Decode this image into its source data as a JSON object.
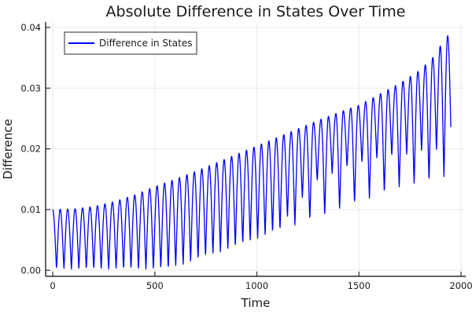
{
  "chart_data": {
    "type": "line",
    "title": "Absolute Difference in States Over Time",
    "xlabel": "Time",
    "ylabel": "Difference",
    "legend": {
      "label": "Difference in States",
      "position": "top-left"
    },
    "background_color": "#ffffff",
    "line_color": "#0000ff",
    "grid": true,
    "grid_color": "#e9e9e9",
    "spine_color": "#2f2f2f",
    "xlim": [
      -35,
      2023
    ],
    "ylim": [
      -0.001,
      0.0409
    ],
    "xticks": [
      0,
      500,
      1000,
      1500,
      2000
    ],
    "xtick_labels": [
      "0",
      "500",
      "1000",
      "1500",
      "2000"
    ],
    "yticks": [
      0,
      0.01,
      0.02,
      0.03,
      0.04
    ],
    "ytick_labels": [
      "0.00",
      "0.01",
      "0.02",
      "0.03",
      "0.04"
    ],
    "series": {
      "name": "Difference in States",
      "t_start": 0,
      "t_end": 1950,
      "sample_step": 1.25,
      "tooth_period": 36.5,
      "sharpness": 1.15,
      "description": "Rectified oscillation |state1 - state2|: teeth every ~36.5 time units; upper envelope grows from 0.010 at t=0 to 0.039 at t=1950; lower envelope stays near 0 until t=560 then rises to ~0.016; after t=1100 minima alternate between a deep and a shallow branch (band bottom ~0.020).",
      "envelope_top": [
        [
          0,
          0.01
        ],
        [
          100,
          0.0101
        ],
        [
          200,
          0.0105
        ],
        [
          300,
          0.0113
        ],
        [
          400,
          0.0124
        ],
        [
          500,
          0.0138
        ],
        [
          600,
          0.015
        ],
        [
          700,
          0.0163
        ],
        [
          800,
          0.0177
        ],
        [
          900,
          0.0191
        ],
        [
          1000,
          0.0205
        ],
        [
          1100,
          0.0219
        ],
        [
          1200,
          0.0233
        ],
        [
          1300,
          0.0247
        ],
        [
          1400,
          0.026
        ],
        [
          1500,
          0.0272
        ],
        [
          1600,
          0.029
        ],
        [
          1700,
          0.0308
        ],
        [
          1800,
          0.033
        ],
        [
          1875,
          0.0355
        ],
        [
          1920,
          0.0383
        ],
        [
          1950,
          0.039
        ]
      ],
      "envelope_deep_min": [
        [
          0,
          0.0002
        ],
        [
          560,
          0.0002
        ],
        [
          670,
          0.0013
        ],
        [
          780,
          0.0026
        ],
        [
          900,
          0.0039
        ],
        [
          1010,
          0.0054
        ],
        [
          1130,
          0.0068
        ],
        [
          1250,
          0.0082
        ],
        [
          1370,
          0.0096
        ],
        [
          1480,
          0.011
        ],
        [
          1600,
          0.0125
        ],
        [
          1720,
          0.0138
        ],
        [
          1840,
          0.0146
        ],
        [
          1950,
          0.0158
        ]
      ],
      "envelope_shallow_min": [
        [
          0,
          0.0002
        ],
        [
          560,
          0.0002
        ],
        [
          670,
          0.0013
        ],
        [
          780,
          0.0026
        ],
        [
          900,
          0.0039
        ],
        [
          1010,
          0.0054
        ],
        [
          1100,
          0.0065
        ],
        [
          1200,
          0.011
        ],
        [
          1300,
          0.0148
        ],
        [
          1400,
          0.0165
        ],
        [
          1500,
          0.0177
        ],
        [
          1600,
          0.0185
        ],
        [
          1700,
          0.019
        ],
        [
          1800,
          0.0194
        ],
        [
          1950,
          0.02
        ]
      ]
    }
  }
}
